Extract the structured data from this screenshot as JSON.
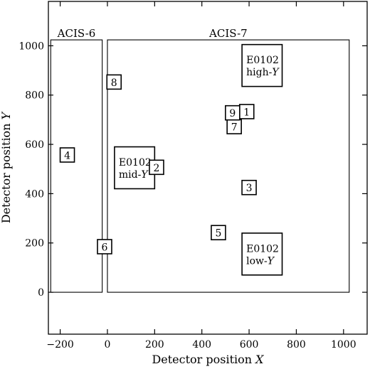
{
  "chart_data": {
    "type": "diagram",
    "xlabel": {
      "prefix": "Detector position ",
      "var": "X"
    },
    "ylabel": {
      "prefix": "Detector position ",
      "var": "Y"
    },
    "xlim": [
      -250,
      1100
    ],
    "ylim": [
      -170,
      1180
    ],
    "xticks": [
      -200,
      0,
      200,
      400,
      600,
      800,
      1000
    ],
    "yticks": [
      0,
      200,
      400,
      600,
      800,
      1000
    ],
    "chips": [
      {
        "name": "ACIS-6",
        "x0": -240,
        "x1": -22,
        "y0": 0,
        "y1": 1024
      },
      {
        "name": "ACIS-7",
        "x0": 0,
        "x1": 1024,
        "y0": 0,
        "y1": 1024
      }
    ],
    "markers": [
      {
        "label": "1",
        "x": 590,
        "y": 733
      },
      {
        "label": "2",
        "x": 208,
        "y": 507
      },
      {
        "label": "3",
        "x": 600,
        "y": 425
      },
      {
        "label": "4",
        "x": -170,
        "y": 557
      },
      {
        "label": "5",
        "x": 470,
        "y": 242
      },
      {
        "label": "6",
        "x": -12,
        "y": 185
      },
      {
        "label": "7",
        "x": 537,
        "y": 672
      },
      {
        "label": "8",
        "x": 28,
        "y": 853
      },
      {
        "label": "9",
        "x": 530,
        "y": 728
      }
    ],
    "regions": [
      {
        "line1": "E0102",
        "line2_prefix": "high-",
        "line2_var": "Y",
        "x0": 570,
        "x1": 740,
        "y0": 835,
        "y1": 1005
      },
      {
        "line1": "E0102",
        "line2_prefix": "mid-",
        "line2_var": "Y",
        "x0": 30,
        "x1": 200,
        "y0": 420,
        "y1": 590
      },
      {
        "line1": "E0102",
        "line2_prefix": "low-",
        "line2_var": "Y",
        "x0": 570,
        "x1": 740,
        "y0": 70,
        "y1": 240
      }
    ]
  }
}
